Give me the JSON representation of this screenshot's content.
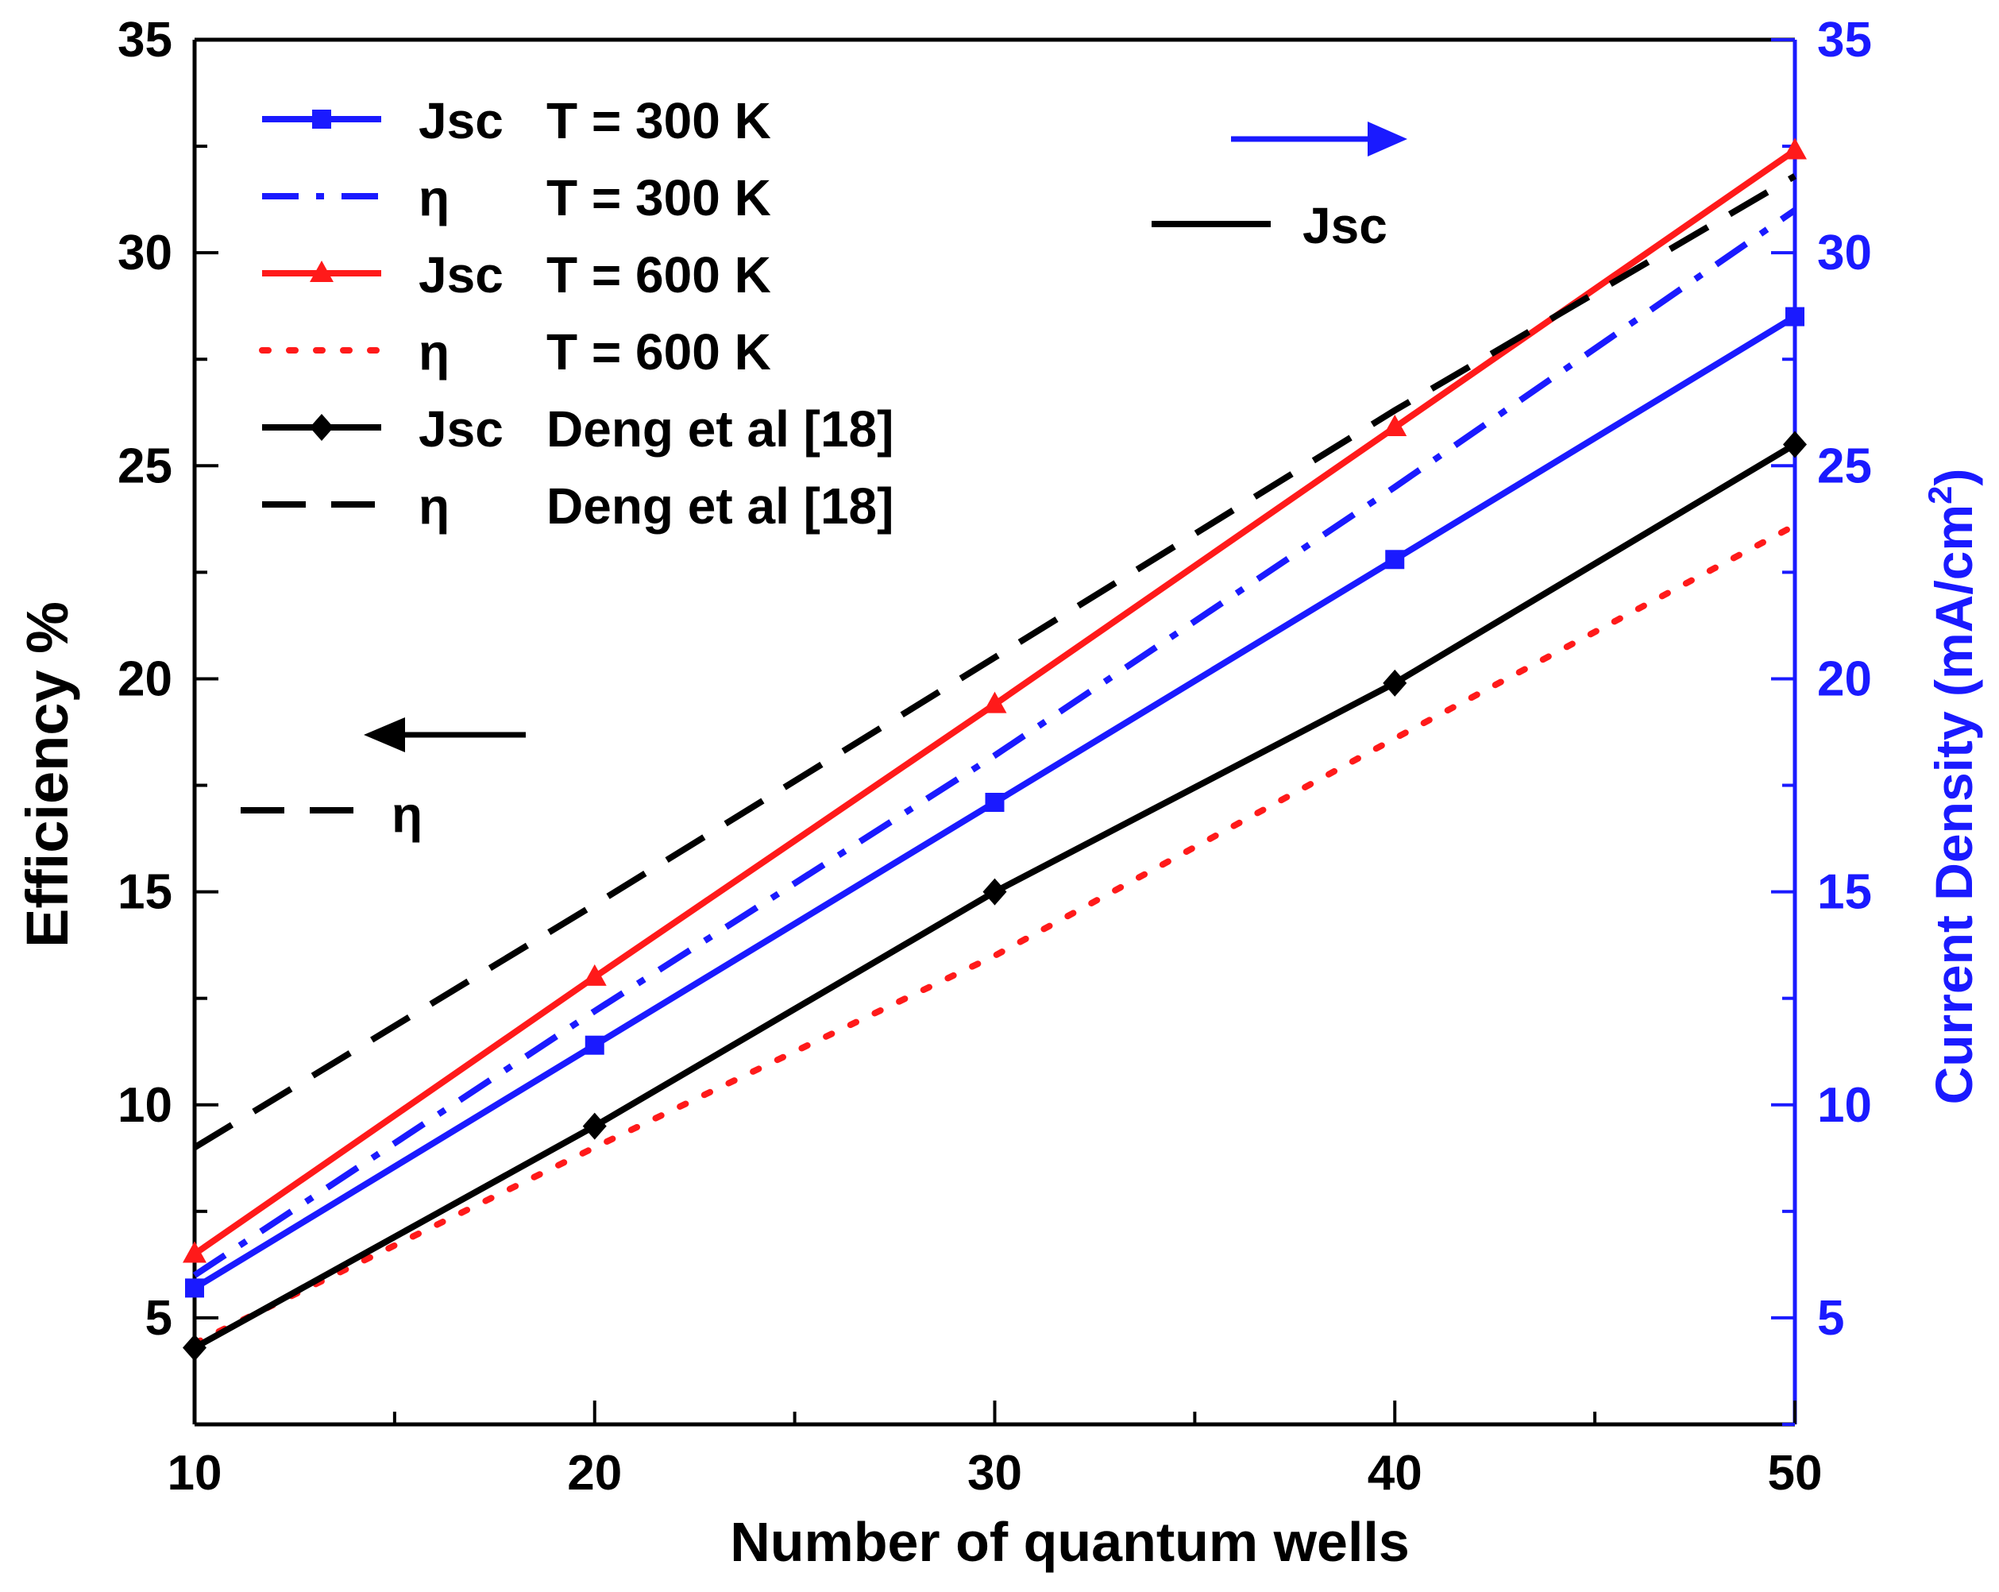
{
  "chart_data": {
    "type": "line",
    "title": "",
    "xlabel": "Number of quantum wells",
    "ylabel_left": "Efficiency %",
    "ylabel_right_main": "Current Density (mA/cm",
    "ylabel_right_sup": "2",
    "ylabel_right_close": ")",
    "xlim": [
      10,
      50
    ],
    "ylim_left": [
      2.5,
      35
    ],
    "ylim_right": [
      2.5,
      35
    ],
    "x_ticks": [
      10,
      20,
      30,
      40,
      50
    ],
    "x_tick_labels": [
      "10",
      "20",
      "30",
      "40",
      "50"
    ],
    "y_ticks_left": [
      5,
      10,
      15,
      20,
      25,
      30,
      35
    ],
    "y_tick_labels_left": [
      "5",
      "10",
      "15",
      "20",
      "25",
      "30",
      "35"
    ],
    "y_ticks_right": [
      5,
      10,
      15,
      20,
      25,
      30,
      35
    ],
    "y_tick_labels_right": [
      "5",
      "10",
      "15",
      "20",
      "25",
      "30",
      "35"
    ],
    "grid": false,
    "legend_position": "top-left",
    "colors": {
      "blue": "#1a1aff",
      "red": "#ff1a1a",
      "black": "#000000",
      "right_axis": "#1a1aff"
    },
    "x": [
      10,
      20,
      30,
      40,
      50
    ],
    "series": [
      {
        "name": "Jsc T = 300 K",
        "legend_symbol": "Jsc",
        "legend_desc": "T = 300 K",
        "color": "#1a1aff",
        "dash": "solid",
        "marker": "square",
        "axis": "right",
        "values": [
          5.7,
          11.4,
          17.1,
          22.8,
          28.5
        ]
      },
      {
        "name": "η T = 300 K",
        "legend_symbol": "η",
        "legend_desc": "T = 300 K",
        "color": "#1a1aff",
        "dash": "dashdot",
        "marker": "none",
        "axis": "left",
        "values": [
          6.0,
          12.2,
          18.2,
          24.5,
          31.0
        ]
      },
      {
        "name": "Jsc T = 600 K",
        "legend_symbol": "Jsc",
        "legend_desc": "T = 600 K",
        "color": "#ff1a1a",
        "dash": "solid",
        "marker": "triangle",
        "axis": "right",
        "values": [
          6.5,
          13.0,
          19.4,
          25.9,
          32.4
        ]
      },
      {
        "name": "η T = 600 K",
        "legend_symbol": "η",
        "legend_desc": "T =  600 K",
        "color": "#ff1a1a",
        "dash": "dot",
        "marker": "none",
        "axis": "left",
        "values": [
          4.4,
          9.0,
          13.5,
          18.6,
          23.6
        ]
      },
      {
        "name": "Jsc Deng et al [18]",
        "legend_symbol": "Jsc",
        "legend_desc": "Deng et al [18]",
        "color": "#000000",
        "dash": "solid",
        "marker": "diamond",
        "axis": "right",
        "values": [
          4.3,
          9.5,
          15.0,
          19.9,
          25.5
        ]
      },
      {
        "name": "η Deng et al [18]",
        "legend_symbol": "η",
        "legend_desc": "Deng et al [18]",
        "color": "#000000",
        "dash": "dash",
        "marker": "none",
        "axis": "left",
        "values": [
          9.0,
          14.7,
          20.5,
          26.3,
          31.8
        ]
      }
    ],
    "annotations": {
      "right_arrow_label": "Jsc",
      "left_arrow_label": "η"
    }
  }
}
